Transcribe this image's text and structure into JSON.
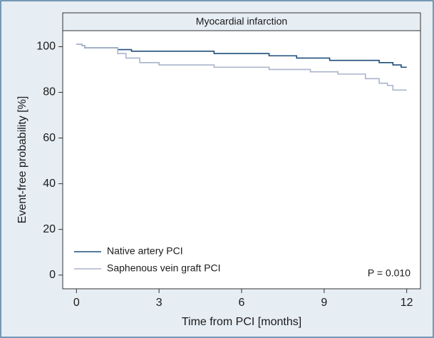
{
  "chart_data": {
    "type": "step-line",
    "title": "Myocardial infarction",
    "xlabel": "Time from PCI [months]",
    "ylabel": "Event-free probability [%]",
    "annotation": "P = 0.010",
    "xlim": [
      -0.5,
      12.5
    ],
    "xticks": [
      0,
      3,
      6,
      9,
      12
    ],
    "ylim": [
      -6,
      107
    ],
    "yticks": [
      0,
      20,
      40,
      60,
      80,
      100
    ],
    "series": [
      {
        "name": "Native artery PCI",
        "color": "#1f4e79",
        "x": [
          0,
          0.2,
          0.3,
          1.5,
          2,
          5,
          7,
          8,
          9.2,
          11,
          11.5,
          11.8,
          12
        ],
        "values": [
          101,
          100.5,
          99.5,
          98.7,
          98,
          97,
          96,
          95,
          94,
          93,
          92,
          91,
          91
        ]
      },
      {
        "name": "Saphenous vein graft PCI",
        "color": "#a9b4cc",
        "x": [
          0,
          0.2,
          0.3,
          1.5,
          1.8,
          2.3,
          3,
          5,
          7,
          8.5,
          9.5,
          10.5,
          11,
          11.3,
          11.5,
          12
        ],
        "values": [
          101,
          100.5,
          99.5,
          97,
          95,
          93,
          92,
          91,
          90,
          89,
          88,
          86,
          84,
          83,
          81,
          81
        ]
      }
    ],
    "legend": "lower left"
  }
}
